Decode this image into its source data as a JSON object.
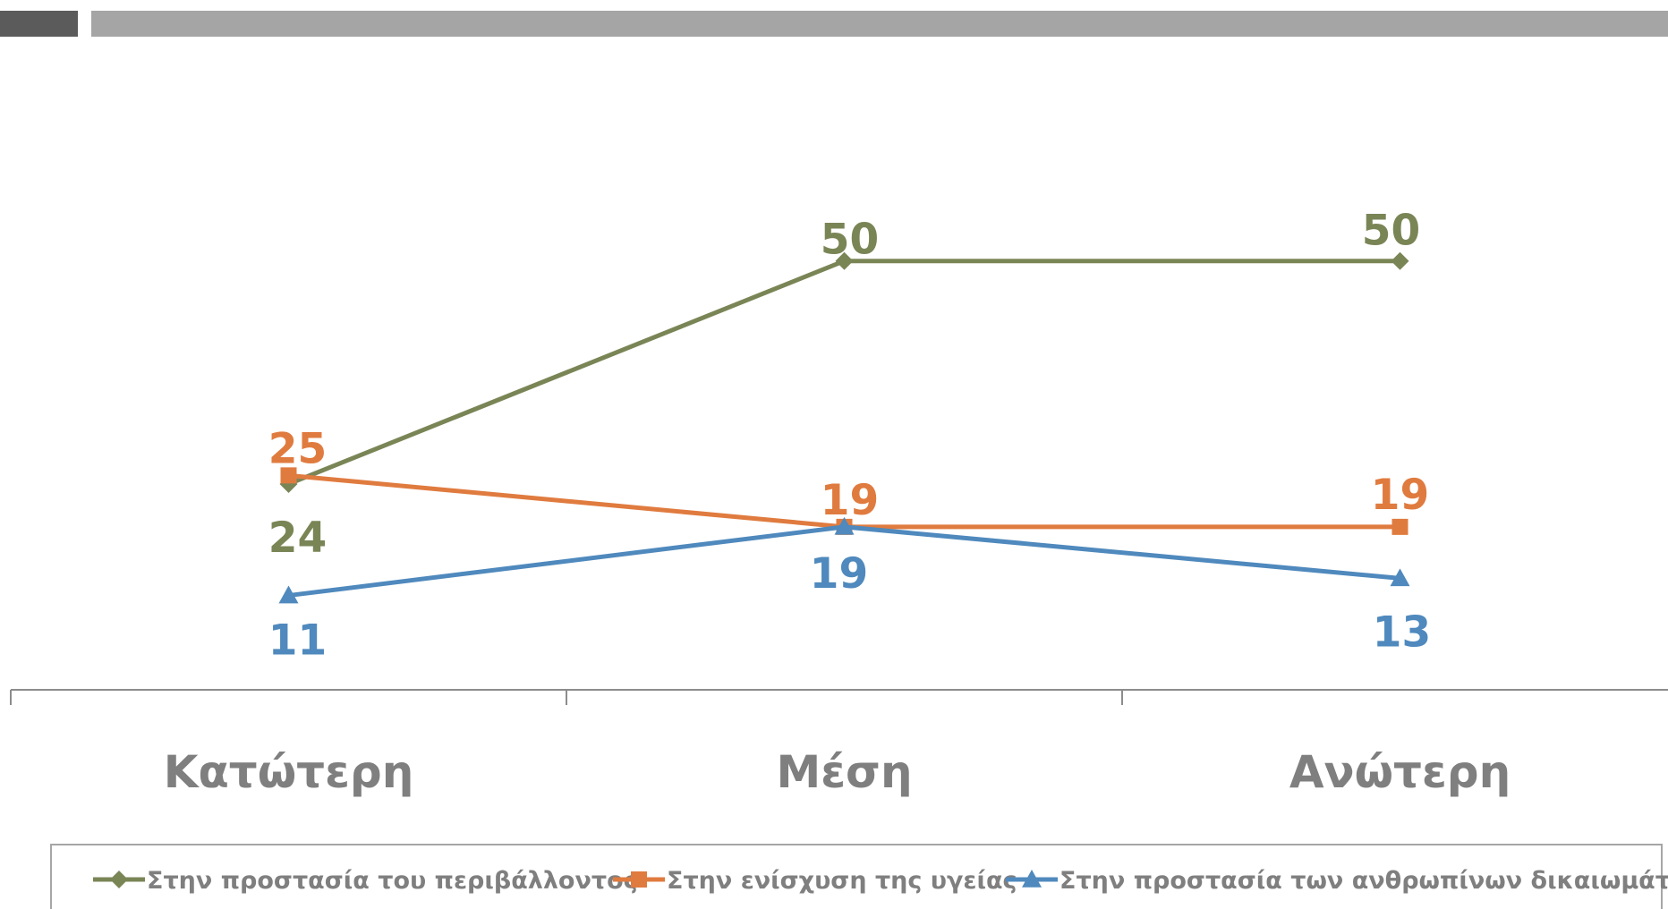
{
  "chart_data": {
    "type": "line",
    "categories": [
      "Κατώτερη",
      "Μέση",
      "Ανώτερη"
    ],
    "series": [
      {
        "name": "Στην προστασία του περιβάλλοντος",
        "values": [
          24,
          50,
          50
        ],
        "color": "#7a8556",
        "marker": "diamond"
      },
      {
        "name": "Στην ενίσχυση της υγείας",
        "values": [
          25,
          19,
          19
        ],
        "color": "#e07b3f",
        "marker": "square"
      },
      {
        "name": "Στην προστασία των ανθρωπίνων δικαιωμάτων",
        "values": [
          11,
          19,
          13
        ],
        "color": "#4f89bd",
        "marker": "triangle"
      }
    ],
    "data_labels": [
      [
        "24",
        "50",
        "50"
      ],
      [
        "25",
        "19",
        "19"
      ],
      [
        "11",
        "19",
        "13"
      ]
    ],
    "title": "",
    "xlabel": "",
    "ylabel": "",
    "ylim": [
      0,
      70
    ],
    "grid": false,
    "legend_position": "bottom"
  },
  "header_colors": {
    "left_block": "#5b5b5b",
    "bar": "#a5a5a5"
  }
}
